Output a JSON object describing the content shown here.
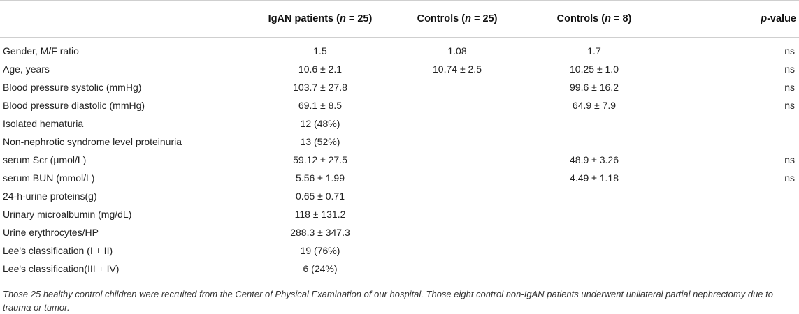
{
  "table": {
    "headers": [
      {
        "main": "",
        "n_label": "",
        "n_value": ""
      },
      {
        "main": "IgAN patients (",
        "n_label": "n",
        "n_value": " = 25)"
      },
      {
        "main": "Controls (",
        "n_label": "n",
        "n_value": " = 25)"
      },
      {
        "main": "Controls (",
        "n_label": "n",
        "n_value": " = 8)"
      },
      {
        "main": "",
        "n_label": "p",
        "n_value": "-value"
      }
    ],
    "rows": [
      [
        "Gender, M/F ratio",
        "1.5",
        "1.08",
        "1.7",
        "ns"
      ],
      [
        "Age, years",
        "10.6 ± 2.1",
        "10.74 ± 2.5",
        "10.25 ± 1.0",
        "ns"
      ],
      [
        "Blood pressure systolic (mmHg)",
        "103.7 ± 27.8",
        "",
        "99.6 ± 16.2",
        "ns"
      ],
      [
        "Blood pressure diastolic (mmHg)",
        "69.1 ± 8.5",
        "",
        "64.9 ± 7.9",
        "ns"
      ],
      [
        "Isolated hematuria",
        "12 (48%)",
        "",
        "",
        ""
      ],
      [
        "Non-nephrotic syndrome level proteinuria",
        "13 (52%)",
        "",
        "",
        ""
      ],
      [
        "serum Scr (μmol/L)",
        "59.12 ± 27.5",
        "",
        "48.9 ± 3.26",
        "ns"
      ],
      [
        "serum BUN (mmol/L)",
        "5.56 ± 1.99",
        "",
        "4.49 ± 1.18",
        "ns"
      ],
      [
        "24-h-urine proteins(g)",
        "0.65 ± 0.71",
        "",
        "",
        ""
      ],
      [
        "Urinary microalbumin (mg/dL)",
        "118 ± 131.2",
        "",
        "",
        ""
      ],
      [
        "Urine erythrocytes/HP",
        "288.3 ± 347.3",
        "",
        "",
        ""
      ],
      [
        "Lee's classification (I + II)",
        "19 (76%)",
        "",
        "",
        ""
      ],
      [
        "Lee's classification(III + IV)",
        "6 (24%)",
        "",
        "",
        ""
      ]
    ]
  },
  "footnote": "Those 25 healthy control children were recruited from the Center of Physical Examination of our hospital. Those eight control non-IgAN patients underwent unilateral partial nephrectomy due to trauma or tumor."
}
